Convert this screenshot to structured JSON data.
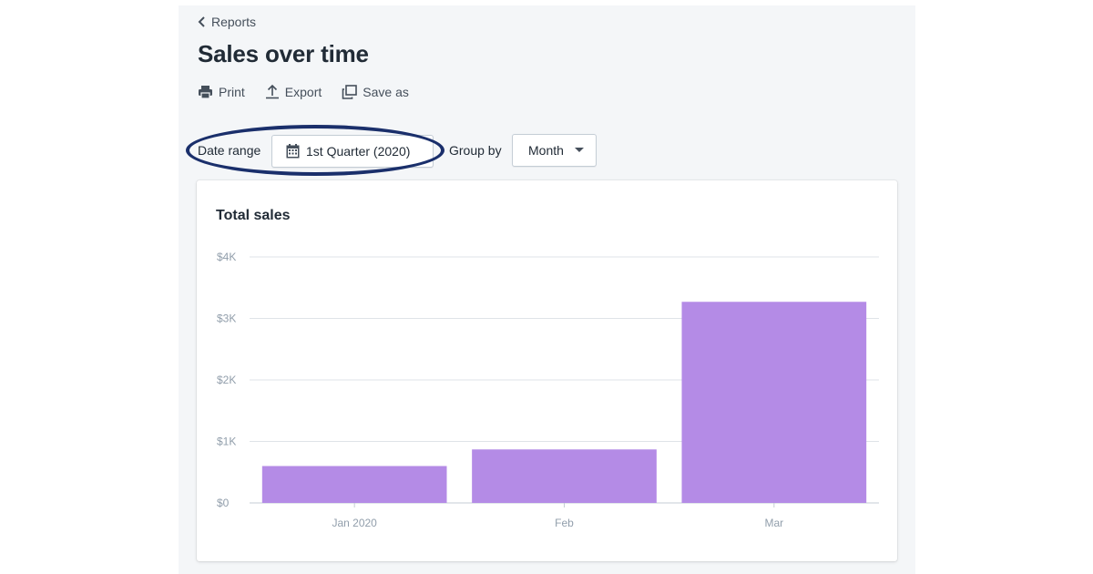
{
  "nav": {
    "back_label": "Reports"
  },
  "page": {
    "title": "Sales over time"
  },
  "actions": {
    "print": "Print",
    "export": "Export",
    "save_as": "Save as"
  },
  "filters": {
    "date_range_label": "Date range",
    "date_range_value": "1st Quarter (2020)",
    "group_by_label": "Group by",
    "group_by_value": "Month"
  },
  "colors": {
    "bar": "#b48be6",
    "highlight_ring": "#1a2f6b",
    "panel_bg": "#f4f6f8"
  },
  "chart_data": {
    "type": "bar",
    "title": "Total sales",
    "categories": [
      "Jan 2020",
      "Feb",
      "Mar"
    ],
    "values": [
      600,
      870,
      3270
    ],
    "y_ticks": [
      "$0",
      "$1K",
      "$2K",
      "$3K",
      "$4K"
    ],
    "ylim": [
      0,
      4000
    ],
    "grid": true,
    "legend": "none"
  }
}
